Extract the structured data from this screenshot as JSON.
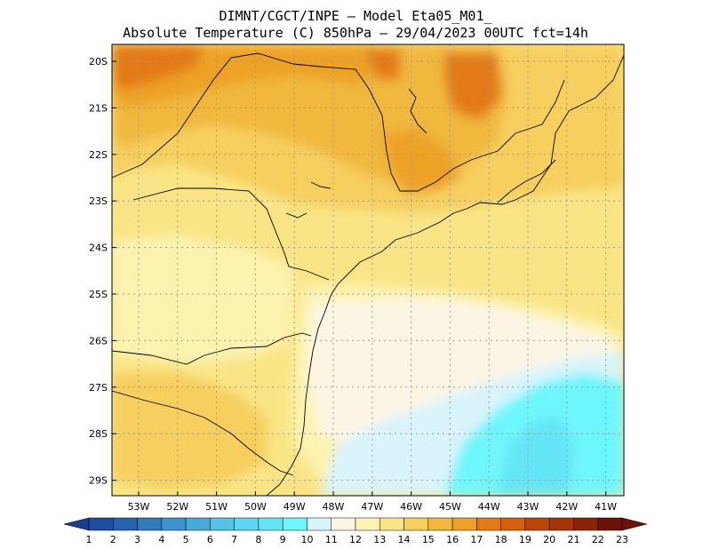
{
  "title": {
    "line1": "DIMNT/CGCT/INPE –  Model Eta05_M01_",
    "line2": "Absolute Temperature (C) 850hPa –  29/04/2023 00UTC fct=14h"
  },
  "map": {
    "lat_labels": [
      "20S",
      "21S",
      "22S",
      "23S",
      "24S",
      "25S",
      "26S",
      "27S",
      "28S",
      "29S"
    ],
    "lon_labels": [
      "53W",
      "52W",
      "51W",
      "50W",
      "49W",
      "48W",
      "47W",
      "46W",
      "45W",
      "44W",
      "43W",
      "42W",
      "41W"
    ],
    "grid": "dotted",
    "coastline_color": "#000000"
  },
  "colorbar": {
    "labels": [
      "1",
      "2",
      "3",
      "4",
      "5",
      "6",
      "7",
      "8",
      "9",
      "10",
      "11",
      "12",
      "13",
      "14",
      "15",
      "16",
      "17",
      "18",
      "19",
      "20",
      "21",
      "22",
      "23"
    ],
    "colors": [
      "#1d3c8f",
      "#1f4e9e",
      "#2663ad",
      "#2f7bbd",
      "#3a93cc",
      "#47abd9",
      "#55c3e6",
      "#5ed6ef",
      "#63e5f5",
      "#6ef6fd",
      "#d9f4fb",
      "#fdf5e4",
      "#fdf3b0",
      "#fae586",
      "#f6cf5f",
      "#f0b83e",
      "#eda227",
      "#e37a14",
      "#d5600c",
      "#bb4608",
      "#a33506",
      "#892506",
      "#6e1106"
    ]
  }
}
